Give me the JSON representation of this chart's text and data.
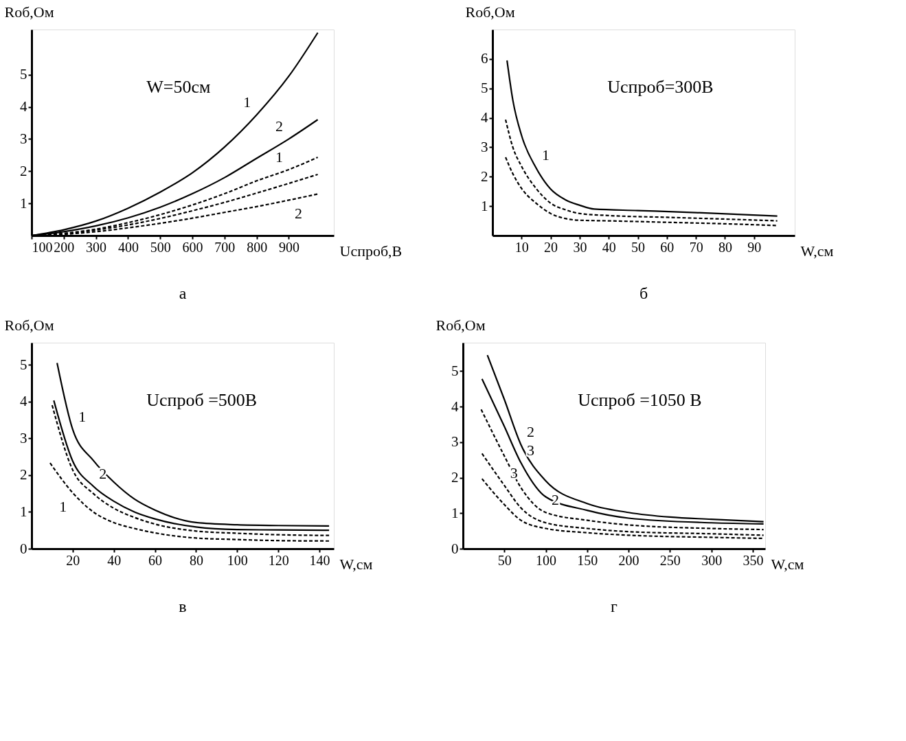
{
  "chart_data": [
    {
      "type": "line",
      "title": "а",
      "xlabel": "Ucпроб,В",
      "ylabel": "Rоб,Ом",
      "xlim": [
        100,
        1040
      ],
      "ylim": [
        0,
        6.4
      ],
      "xticks": [
        100,
        200,
        300,
        400,
        500,
        600,
        700,
        800,
        900
      ],
      "yticks": [
        1,
        2,
        3,
        4,
        5
      ],
      "grid": false,
      "marker": "none",
      "x": [
        100,
        200,
        300,
        400,
        500,
        600,
        700,
        800,
        900,
        990
      ],
      "series": [
        {
          "color": "#000000",
          "line_style": "solid",
          "values": [
            0,
            0.18,
            0.45,
            0.85,
            1.35,
            1.95,
            2.75,
            3.75,
            4.95,
            6.3
          ]
        },
        {
          "color": "#000000",
          "line_style": "solid",
          "values": [
            0,
            0.12,
            0.3,
            0.55,
            0.88,
            1.3,
            1.8,
            2.4,
            3.0,
            3.6
          ]
        },
        {
          "color": "#000000",
          "line_style": "dashed",
          "values": [
            0,
            0.07,
            0.2,
            0.4,
            0.65,
            0.95,
            1.3,
            1.7,
            2.05,
            2.43
          ]
        },
        {
          "color": "#000000",
          "line_style": "dashed",
          "values": [
            0,
            0.05,
            0.17,
            0.33,
            0.53,
            0.77,
            1.03,
            1.32,
            1.62,
            1.9
          ]
        },
        {
          "color": "#000000",
          "line_style": "dashed",
          "values": [
            0,
            0.04,
            0.12,
            0.24,
            0.38,
            0.54,
            0.72,
            0.9,
            1.1,
            1.29
          ]
        }
      ],
      "annotations": [
        "W=50см",
        {
          "text": "1",
          "x": 800,
          "y": 3.75
        },
        {
          "text": "2",
          "x": 900,
          "y": 3.0
        },
        {
          "text": "1",
          "x": 900,
          "y": 2.05
        },
        {
          "text": "2",
          "x": 900,
          "y": 1.1
        }
      ]
    },
    {
      "type": "line",
      "title": "б",
      "xlabel": "W,см",
      "ylabel": "Rоб,Ом",
      "xlim": [
        0,
        104
      ],
      "ylim": [
        0,
        7
      ],
      "xticks": [
        10,
        20,
        30,
        40,
        50,
        60,
        70,
        80,
        90
      ],
      "yticks": [
        1,
        2,
        3,
        4,
        5,
        6
      ],
      "grid": false,
      "marker": "none",
      "series": [
        {
          "color": "#000000",
          "line_style": "solid",
          "x": [
            5,
            7,
            10,
            15,
            20,
            25,
            30,
            35,
            50,
            70,
            98
          ],
          "values": [
            5.95,
            4.6,
            3.4,
            2.3,
            1.58,
            1.22,
            1.03,
            0.9,
            0.85,
            0.78,
            0.66
          ]
        },
        {
          "color": "#000000",
          "line_style": "dashed",
          "x": [
            4.5,
            7,
            10,
            15,
            20,
            25,
            30,
            40,
            60,
            80,
            98
          ],
          "values": [
            3.94,
            3.0,
            2.35,
            1.6,
            1.1,
            0.88,
            0.75,
            0.68,
            0.62,
            0.56,
            0.5
          ]
        },
        {
          "color": "#000000",
          "line_style": "dashed",
          "x": [
            4.5,
            7,
            10,
            15,
            20,
            25,
            30,
            40,
            60,
            80,
            98
          ],
          "values": [
            2.66,
            2.1,
            1.6,
            1.1,
            0.75,
            0.58,
            0.52,
            0.5,
            0.45,
            0.4,
            0.34
          ]
        }
      ],
      "annotations": [
        "Ucпроб=300В",
        {
          "text": "1",
          "x": 15,
          "y": 2.3
        }
      ]
    },
    {
      "type": "line",
      "title": "в",
      "xlabel": "W,см",
      "ylabel": "Rоб,Ом",
      "xlim": [
        0,
        147
      ],
      "ylim": [
        0,
        5.6
      ],
      "xticks": [
        20,
        40,
        60,
        80,
        100,
        120,
        140
      ],
      "yticks": [
        0,
        1,
        2,
        3,
        4,
        5
      ],
      "grid": false,
      "marker": "none",
      "series": [
        {
          "color": "#000000",
          "line_style": "solid",
          "x": [
            12.4,
            20,
            30,
            40,
            50,
            60,
            80,
            100,
            120,
            144.7
          ],
          "values": [
            5.05,
            3.24,
            2.4,
            1.81,
            1.35,
            1.05,
            0.71,
            0.65,
            0.63,
            0.62
          ]
        },
        {
          "color": "#000000",
          "line_style": "solid",
          "x": [
            10.8,
            20,
            30,
            40,
            50,
            60,
            80,
            100,
            120,
            144.7
          ],
          "values": [
            4.03,
            2.38,
            1.7,
            1.29,
            1.0,
            0.81,
            0.59,
            0.52,
            0.51,
            0.5
          ]
        },
        {
          "color": "#000000",
          "line_style": "dashed",
          "x": [
            10,
            20,
            30,
            40,
            50,
            60,
            80,
            100,
            120,
            144.7
          ],
          "values": [
            3.9,
            2.14,
            1.5,
            1.1,
            0.85,
            0.67,
            0.48,
            0.42,
            0.38,
            0.36
          ]
        },
        {
          "color": "#000000",
          "line_style": "dashed",
          "x": [
            9,
            20,
            30,
            40,
            50,
            60,
            80,
            100,
            120,
            144.7
          ],
          "values": [
            2.33,
            1.52,
            1.0,
            0.71,
            0.55,
            0.43,
            0.29,
            0.25,
            0.22,
            0.21
          ]
        }
      ],
      "annotations": [
        "Ucпроб =500В",
        {
          "text": "1",
          "x": 20,
          "y": 3.24
        },
        {
          "text": "2",
          "x": 30,
          "y": 1.7
        },
        {
          "text": "1",
          "x": 20,
          "y": 1.52
        }
      ]
    },
    {
      "type": "line",
      "title": "г",
      "xlabel": "W,см",
      "ylabel": "Rоб,Ом",
      "xlim": [
        0,
        365
      ],
      "ylim": [
        0,
        5.8
      ],
      "xticks": [
        50,
        100,
        150,
        200,
        250,
        300,
        350
      ],
      "yticks": [
        0,
        1,
        2,
        3,
        4,
        5
      ],
      "grid": false,
      "marker": "none",
      "series": [
        {
          "color": "#000000",
          "line_style": "solid",
          "x": [
            29.5,
            50,
            70,
            100,
            150,
            200,
            250,
            300,
            363
          ],
          "values": [
            5.45,
            4.2,
            2.93,
            1.91,
            1.27,
            1.02,
            0.89,
            0.83,
            0.76
          ]
        },
        {
          "color": "#000000",
          "line_style": "solid",
          "x": [
            23,
            50,
            70,
            100,
            150,
            200,
            300,
            363
          ],
          "values": [
            4.78,
            3.44,
            2.42,
            1.46,
            1.08,
            0.86,
            0.73,
            0.7
          ]
        },
        {
          "color": "#000000",
          "line_style": "dashed",
          "x": [
            22,
            50,
            70,
            100,
            150,
            200,
            300,
            363
          ],
          "values": [
            3.92,
            2.61,
            1.72,
            1.02,
            0.8,
            0.67,
            0.57,
            0.54
          ]
        },
        {
          "color": "#000000",
          "line_style": "dashed",
          "x": [
            23,
            50,
            70,
            100,
            150,
            200,
            300,
            363
          ],
          "values": [
            2.68,
            1.78,
            1.15,
            0.73,
            0.57,
            0.48,
            0.42,
            0.38
          ]
        },
        {
          "color": "#000000",
          "line_style": "dashed",
          "x": [
            23,
            50,
            70,
            100,
            150,
            200,
            300,
            363
          ],
          "values": [
            1.97,
            1.24,
            0.8,
            0.57,
            0.45,
            0.38,
            0.32,
            0.29
          ]
        }
      ],
      "annotations": [
        "Ucпроб =1050 В",
        {
          "text": "2",
          "x": 70,
          "y": 2.93
        },
        {
          "text": "3",
          "x": 70,
          "y": 2.42
        },
        {
          "text": "2",
          "x": 100,
          "y": 1.02
        },
        {
          "text": "3",
          "x": 50,
          "y": 1.78
        }
      ]
    }
  ]
}
